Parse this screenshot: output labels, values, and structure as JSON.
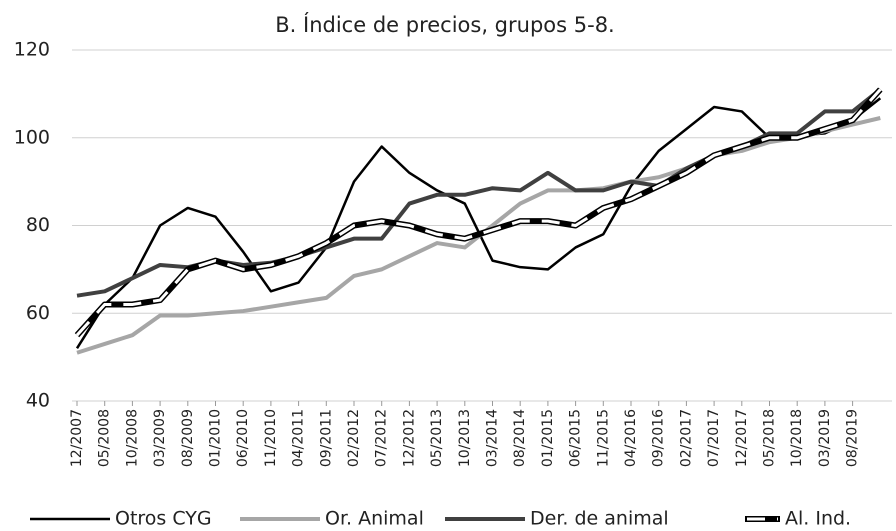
{
  "chart_data": {
    "type": "line",
    "title": "B. Índice de precios, grupos 5-8.",
    "categories": [
      "12/2007",
      "05/2008",
      "10/2008",
      "03/2009",
      "08/2009",
      "01/2010",
      "06/2010",
      "11/2010",
      "04/2011",
      "09/2011",
      "02/2012",
      "07/2012",
      "12/2012",
      "05/2013",
      "10/2013",
      "03/2014",
      "08/2014",
      "01/2015",
      "06/2015",
      "11/2015",
      "04/2016",
      "09/2016",
      "02/2017",
      "07/2017",
      "12/2017",
      "05/2018",
      "10/2018",
      "03/2019",
      "08/2019",
      null
    ],
    "series": [
      {
        "name": "Otros CYG",
        "color": "#000000",
        "width": 2.5,
        "values": [
          52,
          62,
          68,
          80,
          84,
          82,
          74,
          65,
          67,
          75,
          90,
          98,
          92,
          88,
          85,
          72,
          70.5,
          70,
          75,
          78,
          89,
          97,
          102,
          107,
          106,
          100,
          100.5,
          101,
          104,
          109
        ]
      },
      {
        "name": "Or. Animal",
        "color": "#a6a6a6",
        "width": 4,
        "values": [
          51,
          53,
          55,
          59.5,
          59.5,
          60,
          60.5,
          61.5,
          62.5,
          63.5,
          68.5,
          70,
          73,
          76,
          75,
          80,
          85,
          88,
          88,
          88.5,
          90,
          91,
          93,
          96,
          97,
          99,
          100,
          101.5,
          103,
          104.5
        ]
      },
      {
        "name": "Der. de animal",
        "color": "#404040",
        "width": 4,
        "values": [
          64,
          65,
          68,
          71,
          70.5,
          72,
          71,
          71.5,
          73,
          75,
          77,
          77,
          85,
          87,
          87,
          88.5,
          88,
          92,
          88,
          88,
          90,
          89,
          93,
          96,
          98,
          101,
          101,
          106,
          106,
          111
        ]
      },
      {
        "name": "Al. Ind.",
        "color": "#000000",
        "width": 5,
        "style": "dashed",
        "values": [
          55,
          62,
          62,
          63,
          70,
          72,
          70,
          71,
          73,
          76,
          80,
          81,
          80,
          78,
          77,
          79,
          81,
          81,
          80,
          84,
          86,
          89,
          92,
          96,
          98,
          100,
          100,
          102,
          104,
          111
        ]
      }
    ],
    "ylim": [
      40,
      120
    ],
    "yticks": [
      40,
      60,
      80,
      100,
      120
    ],
    "grid": true
  }
}
